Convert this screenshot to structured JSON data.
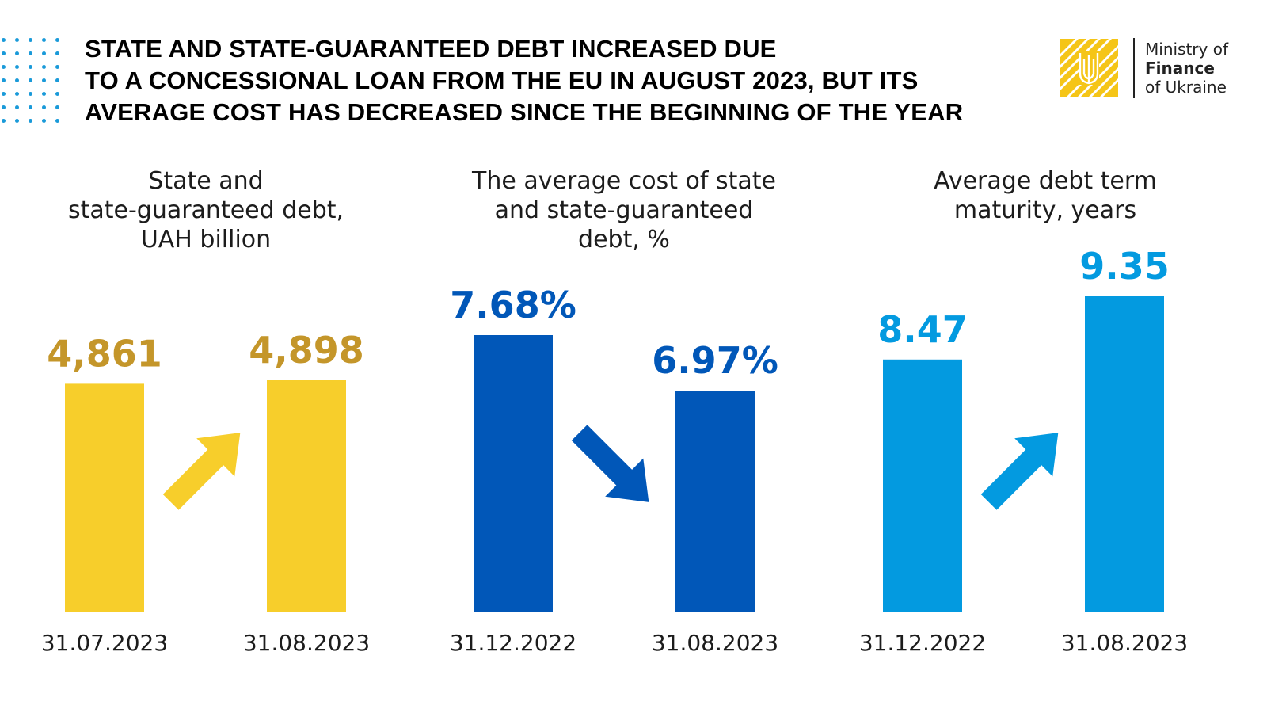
{
  "headline": {
    "lines": [
      "STATE AND STATE-GUARANTEED DEBT INCREASED DUE",
      "TO A CONCESSIONAL LOAN FROM THE EU IN AUGUST 2023, BUT ITS",
      "AVERAGE COST HAS DECREASED SINCE THE BEGINNING OF THE YEAR"
    ]
  },
  "logo": {
    "line1": "Ministry of",
    "line2": "Finance",
    "line3": "of Ukraine",
    "badge_color": "#f5c517",
    "icon": "trident-icon"
  },
  "chart_data": [
    {
      "type": "bar",
      "title": "State and\nstate-guaranteed debt,\nUAH billion",
      "categories": [
        "31.07.2023",
        "31.08.2023"
      ],
      "values": [
        4861,
        4898
      ],
      "labels": [
        "4,861",
        "4,898"
      ],
      "ylim": [
        0,
        4898
      ],
      "trend": "up",
      "bar_color": "#f7ce2b",
      "label_color": "#c4962a",
      "arrow_color": "#f7ce2b"
    },
    {
      "type": "bar",
      "title": "The average cost of state\nand state-guaranteed\ndebt, %",
      "categories": [
        "31.12.2022",
        "31.08.2023"
      ],
      "values": [
        7.68,
        6.97
      ],
      "labels": [
        "7.68%",
        "6.97%"
      ],
      "ylim": [
        0,
        7.68
      ],
      "trend": "down",
      "bar_color": "#0157b8",
      "label_color": "#0157b8",
      "arrow_color": "#0157b8"
    },
    {
      "type": "bar",
      "title": "Average debt term\nmaturity, years",
      "categories": [
        "31.12.2022",
        "31.08.2023"
      ],
      "values": [
        8.47,
        9.35
      ],
      "labels": [
        "8.47",
        "9.35"
      ],
      "ylim": [
        0,
        9.35
      ],
      "trend": "up",
      "bar_color": "#039ae0",
      "label_color": "#039ae0",
      "arrow_color": "#039ae0"
    }
  ]
}
